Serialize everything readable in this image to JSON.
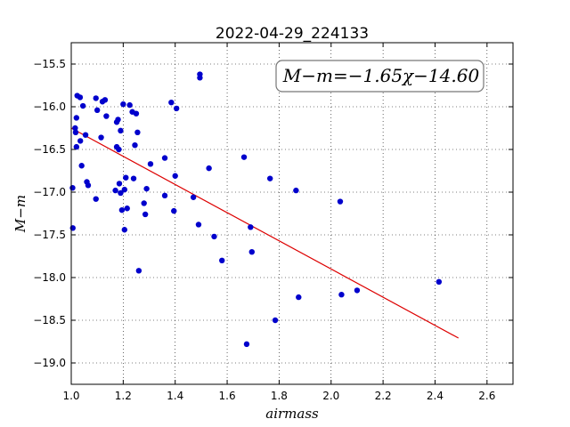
{
  "chart_data": {
    "type": "scatter",
    "title": "2022-04-29_224133",
    "xlabel": "airmass",
    "ylabel": "M−m",
    "annotation": "M−m=−1.65χ−14.60",
    "xlim": [
      1.0,
      2.7
    ],
    "ylim": [
      -19.25,
      -15.25
    ],
    "y_inverted": true,
    "grid": true,
    "x_ticks": [
      "1.0",
      "1.2",
      "1.4",
      "1.6",
      "1.8",
      "2.0",
      "2.2",
      "2.4",
      "2.6"
    ],
    "x_tick_values": [
      1.0,
      1.2,
      1.4,
      1.6,
      1.8,
      2.0,
      2.2,
      2.4,
      2.6
    ],
    "y_ticks": [
      "−15.5",
      "−16.0",
      "−16.5",
      "−17.0",
      "−17.5",
      "−18.0",
      "−18.5",
      "−19.0"
    ],
    "y_tick_values": [
      -15.5,
      -16.0,
      -16.5,
      -17.0,
      -17.5,
      -18.0,
      -18.5,
      -19.0
    ],
    "point_color": "#0000cc",
    "fit_color": "#dd0000",
    "fit": {
      "slope": -1.65,
      "intercept": -14.6,
      "x_range": [
        1.0,
        2.49
      ]
    },
    "points": [
      [
        1.005,
        -16.95
      ],
      [
        1.006,
        -17.42
      ],
      [
        1.015,
        -16.25
      ],
      [
        1.017,
        -16.3
      ],
      [
        1.02,
        -16.47
      ],
      [
        1.02,
        -16.13
      ],
      [
        1.023,
        -15.87
      ],
      [
        1.034,
        -15.89
      ],
      [
        1.035,
        -16.4
      ],
      [
        1.04,
        -16.69
      ],
      [
        1.045,
        -15.99
      ],
      [
        1.055,
        -16.33
      ],
      [
        1.06,
        -16.88
      ],
      [
        1.065,
        -16.92
      ],
      [
        1.095,
        -15.9
      ],
      [
        1.095,
        -17.08
      ],
      [
        1.1,
        -16.04
      ],
      [
        1.115,
        -16.36
      ],
      [
        1.12,
        -15.94
      ],
      [
        1.13,
        -15.92
      ],
      [
        1.135,
        -16.11
      ],
      [
        1.17,
        -16.98
      ],
      [
        1.175,
        -16.18
      ],
      [
        1.175,
        -16.47
      ],
      [
        1.18,
        -16.15
      ],
      [
        1.183,
        -16.5
      ],
      [
        1.185,
        -16.9
      ],
      [
        1.19,
        -16.28
      ],
      [
        1.19,
        -17.01
      ],
      [
        1.195,
        -17.21
      ],
      [
        1.2,
        -15.97
      ],
      [
        1.205,
        -16.97
      ],
      [
        1.205,
        -17.44
      ],
      [
        1.21,
        -16.83
      ],
      [
        1.215,
        -17.19
      ],
      [
        1.225,
        -15.98
      ],
      [
        1.235,
        -16.06
      ],
      [
        1.24,
        -16.84
      ],
      [
        1.245,
        -16.45
      ],
      [
        1.25,
        -16.08
      ],
      [
        1.255,
        -16.3
      ],
      [
        1.26,
        -17.92
      ],
      [
        1.28,
        -17.13
      ],
      [
        1.285,
        -17.26
      ],
      [
        1.29,
        -16.96
      ],
      [
        1.305,
        -16.67
      ],
      [
        1.36,
        -16.6
      ],
      [
        1.36,
        -17.04
      ],
      [
        1.385,
        -15.95
      ],
      [
        1.395,
        -17.22
      ],
      [
        1.4,
        -16.81
      ],
      [
        1.405,
        -16.02
      ],
      [
        1.47,
        -17.06
      ],
      [
        1.49,
        -17.38
      ],
      [
        1.495,
        -15.62
      ],
      [
        1.495,
        -15.66
      ],
      [
        1.53,
        -16.72
      ],
      [
        1.55,
        -17.52
      ],
      [
        1.58,
        -17.8
      ],
      [
        1.665,
        -16.59
      ],
      [
        1.675,
        -18.78
      ],
      [
        1.69,
        -17.41
      ],
      [
        1.695,
        -17.7
      ],
      [
        1.765,
        -16.84
      ],
      [
        1.785,
        -18.5
      ],
      [
        1.865,
        -16.98
      ],
      [
        1.875,
        -18.23
      ],
      [
        2.035,
        -17.11
      ],
      [
        2.04,
        -18.2
      ],
      [
        2.1,
        -18.15
      ],
      [
        2.415,
        -18.05
      ]
    ]
  }
}
